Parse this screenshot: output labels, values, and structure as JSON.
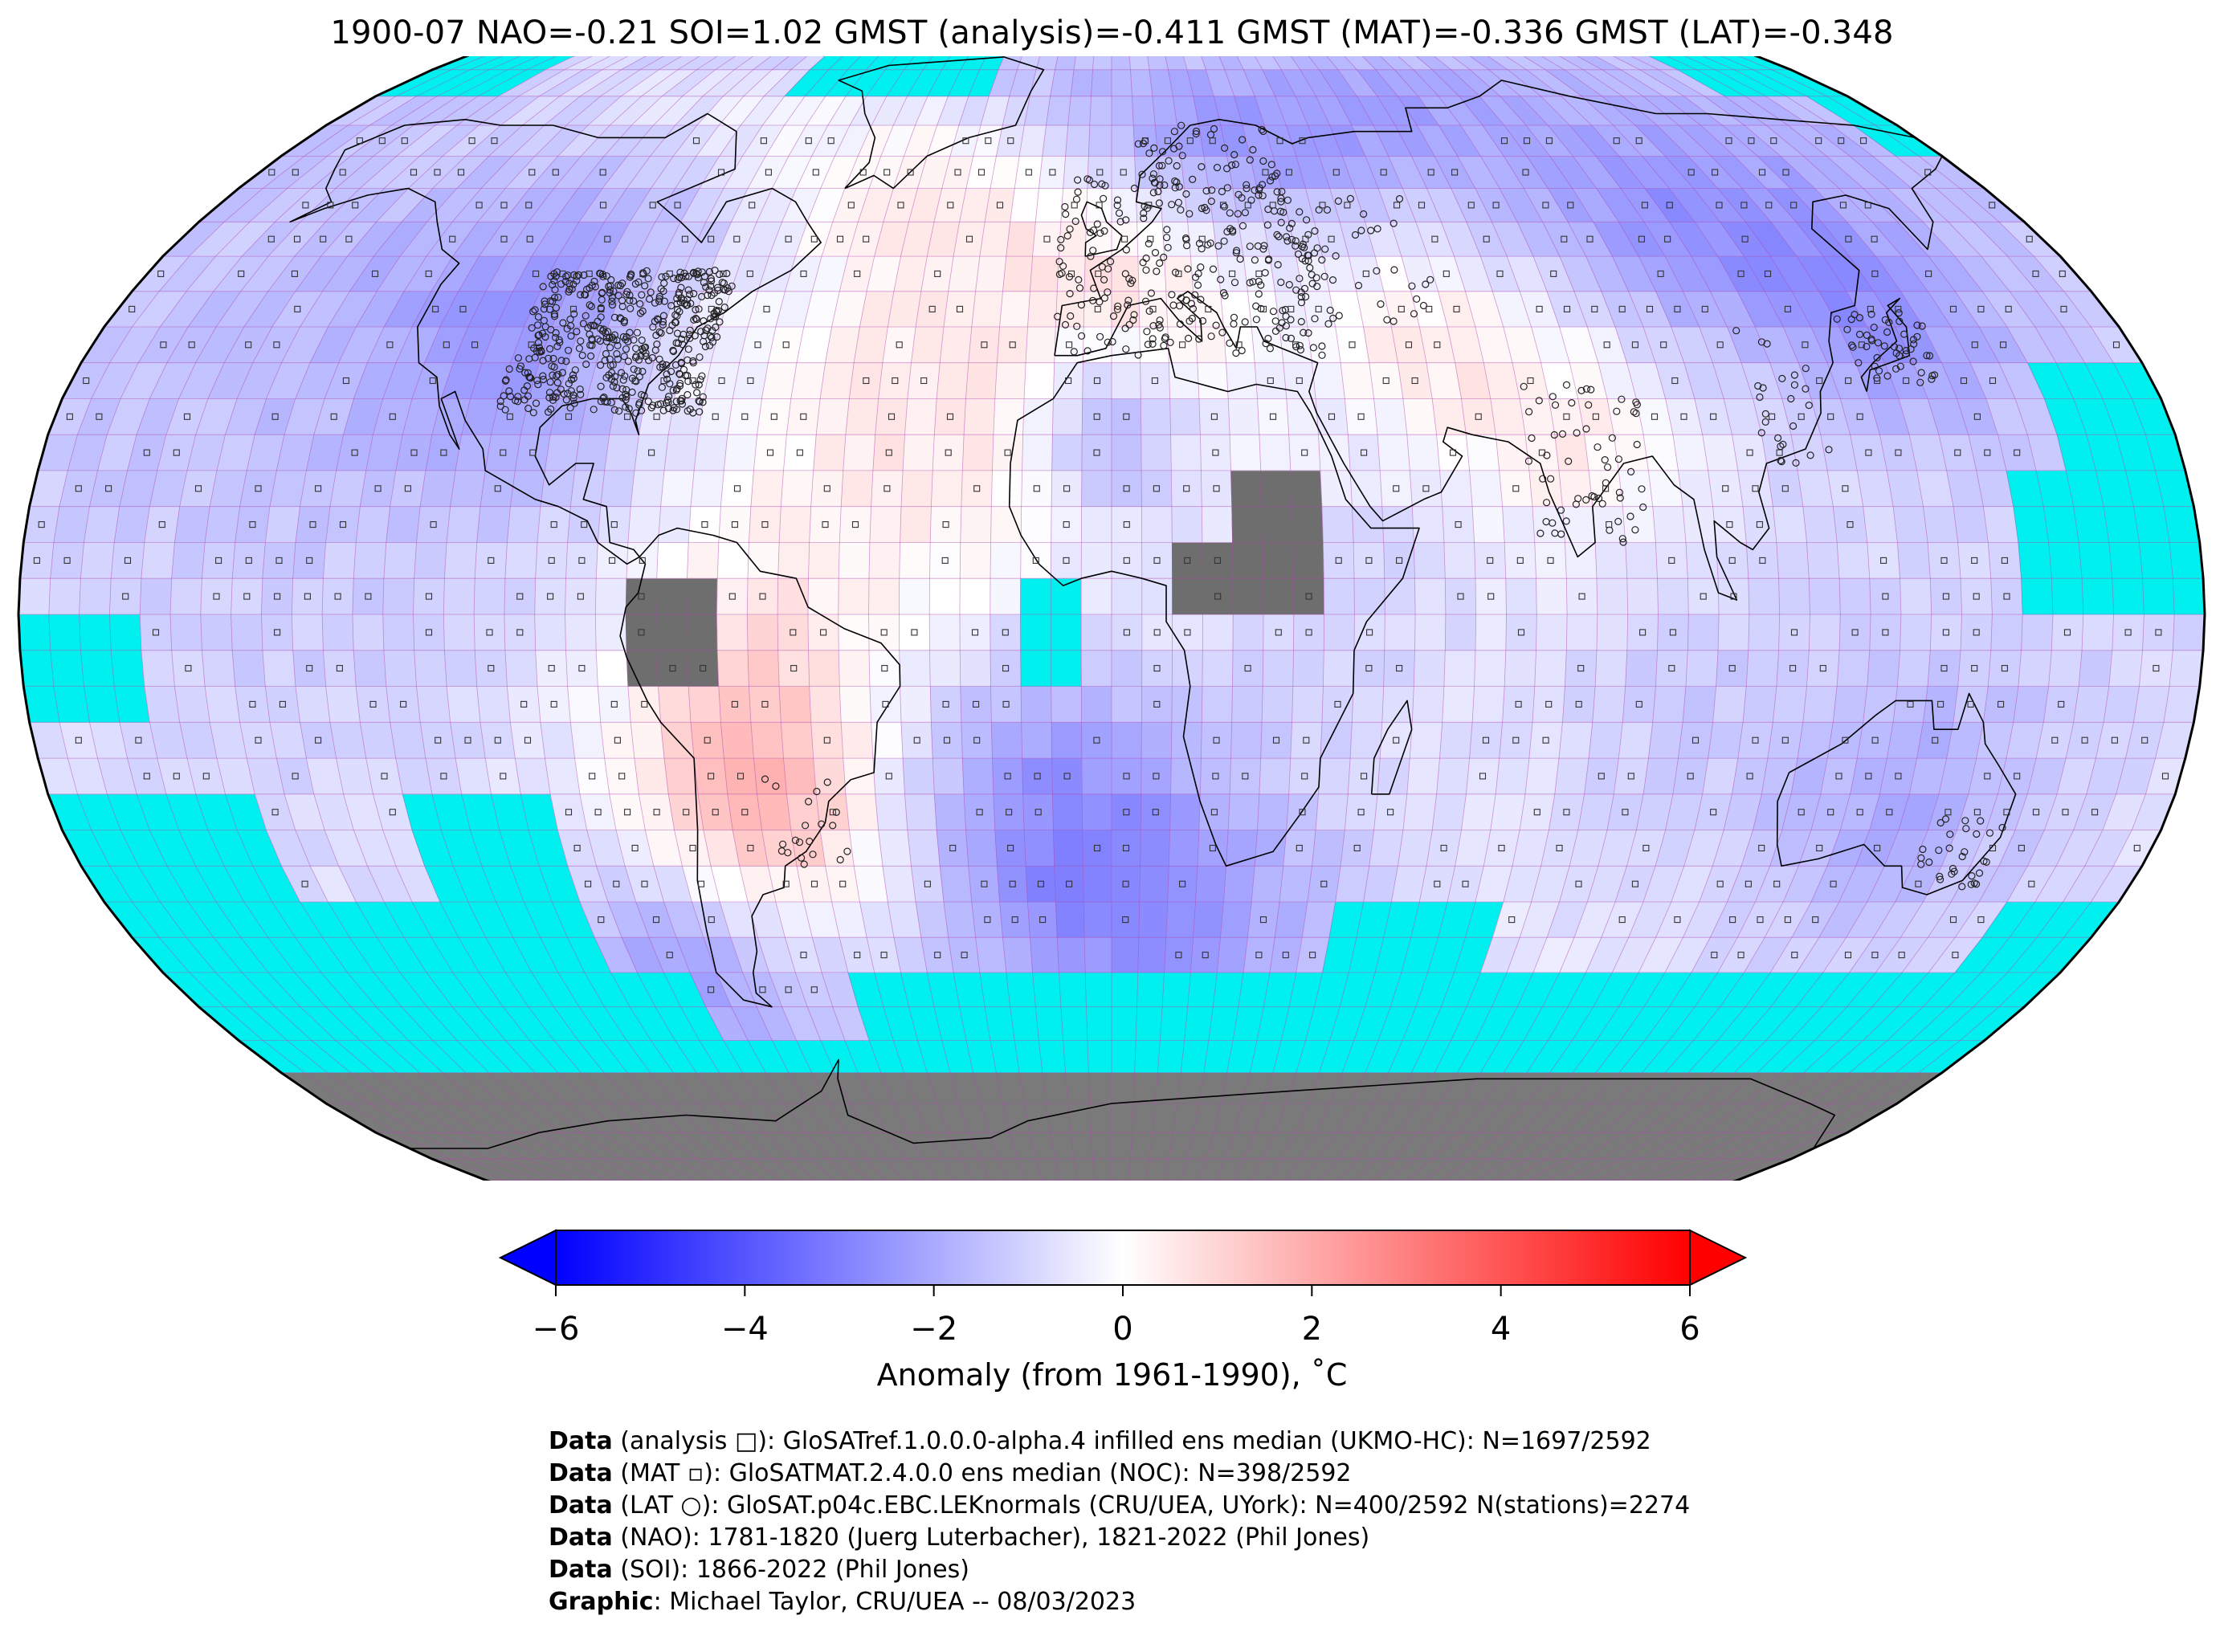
{
  "title": "1900-07 NAO=-0.21 SOI=1.02 GMST (analysis)=-0.411 GMST (MAT)=-0.336 GMST (LAT)=-0.348",
  "map": {
    "projection": "Robinson",
    "grid_resolution_deg": 5,
    "colors": {
      "no_data_ocean": "#00f0f0",
      "missing_land": "#6e6e6e",
      "antarctica": "#7a7a7a",
      "grid_line": "#b04ab0",
      "coastline": "#000000"
    },
    "markers": {
      "analysis": "square",
      "mat": "small square",
      "lat": "circle"
    }
  },
  "colorbar": {
    "vmin": -6,
    "vmax": 6,
    "cmap": "bwr",
    "extend": "both",
    "ticks": [
      "−6",
      "−4",
      "−2",
      "0",
      "2",
      "4",
      "6"
    ],
    "tick_values": [
      -6,
      -4,
      -2,
      0,
      2,
      4,
      6
    ],
    "label": "Anomaly (from 1961-1990), ˚C"
  },
  "credits": [
    {
      "bold": "Data",
      "text": " (analysis □): GloSATref.1.0.0.0-alpha.4 infilled ens median (UKMO-HC): N=1697/2592"
    },
    {
      "bold": "Data",
      "text": " (MAT ▫): GloSATMAT.2.4.0.0 ens median (NOC): N=398/2592"
    },
    {
      "bold": "Data",
      "text": " (LAT ○): GloSAT.p04c.EBC.LEKnormals (CRU/UEA, UYork): N=400/2592 N(stations)=2274"
    },
    {
      "bold": "Data",
      "text": " (NAO): 1781-1820 (Juerg Luterbacher), 1821-2022 (Phil Jones)"
    },
    {
      "bold": "Data",
      "text": " (SOI): 1866-2022 (Phil Jones)"
    },
    {
      "bold": "Graphic",
      "text": ": Michael Taylor, CRU/UEA -- 08/03/2023"
    }
  ]
}
